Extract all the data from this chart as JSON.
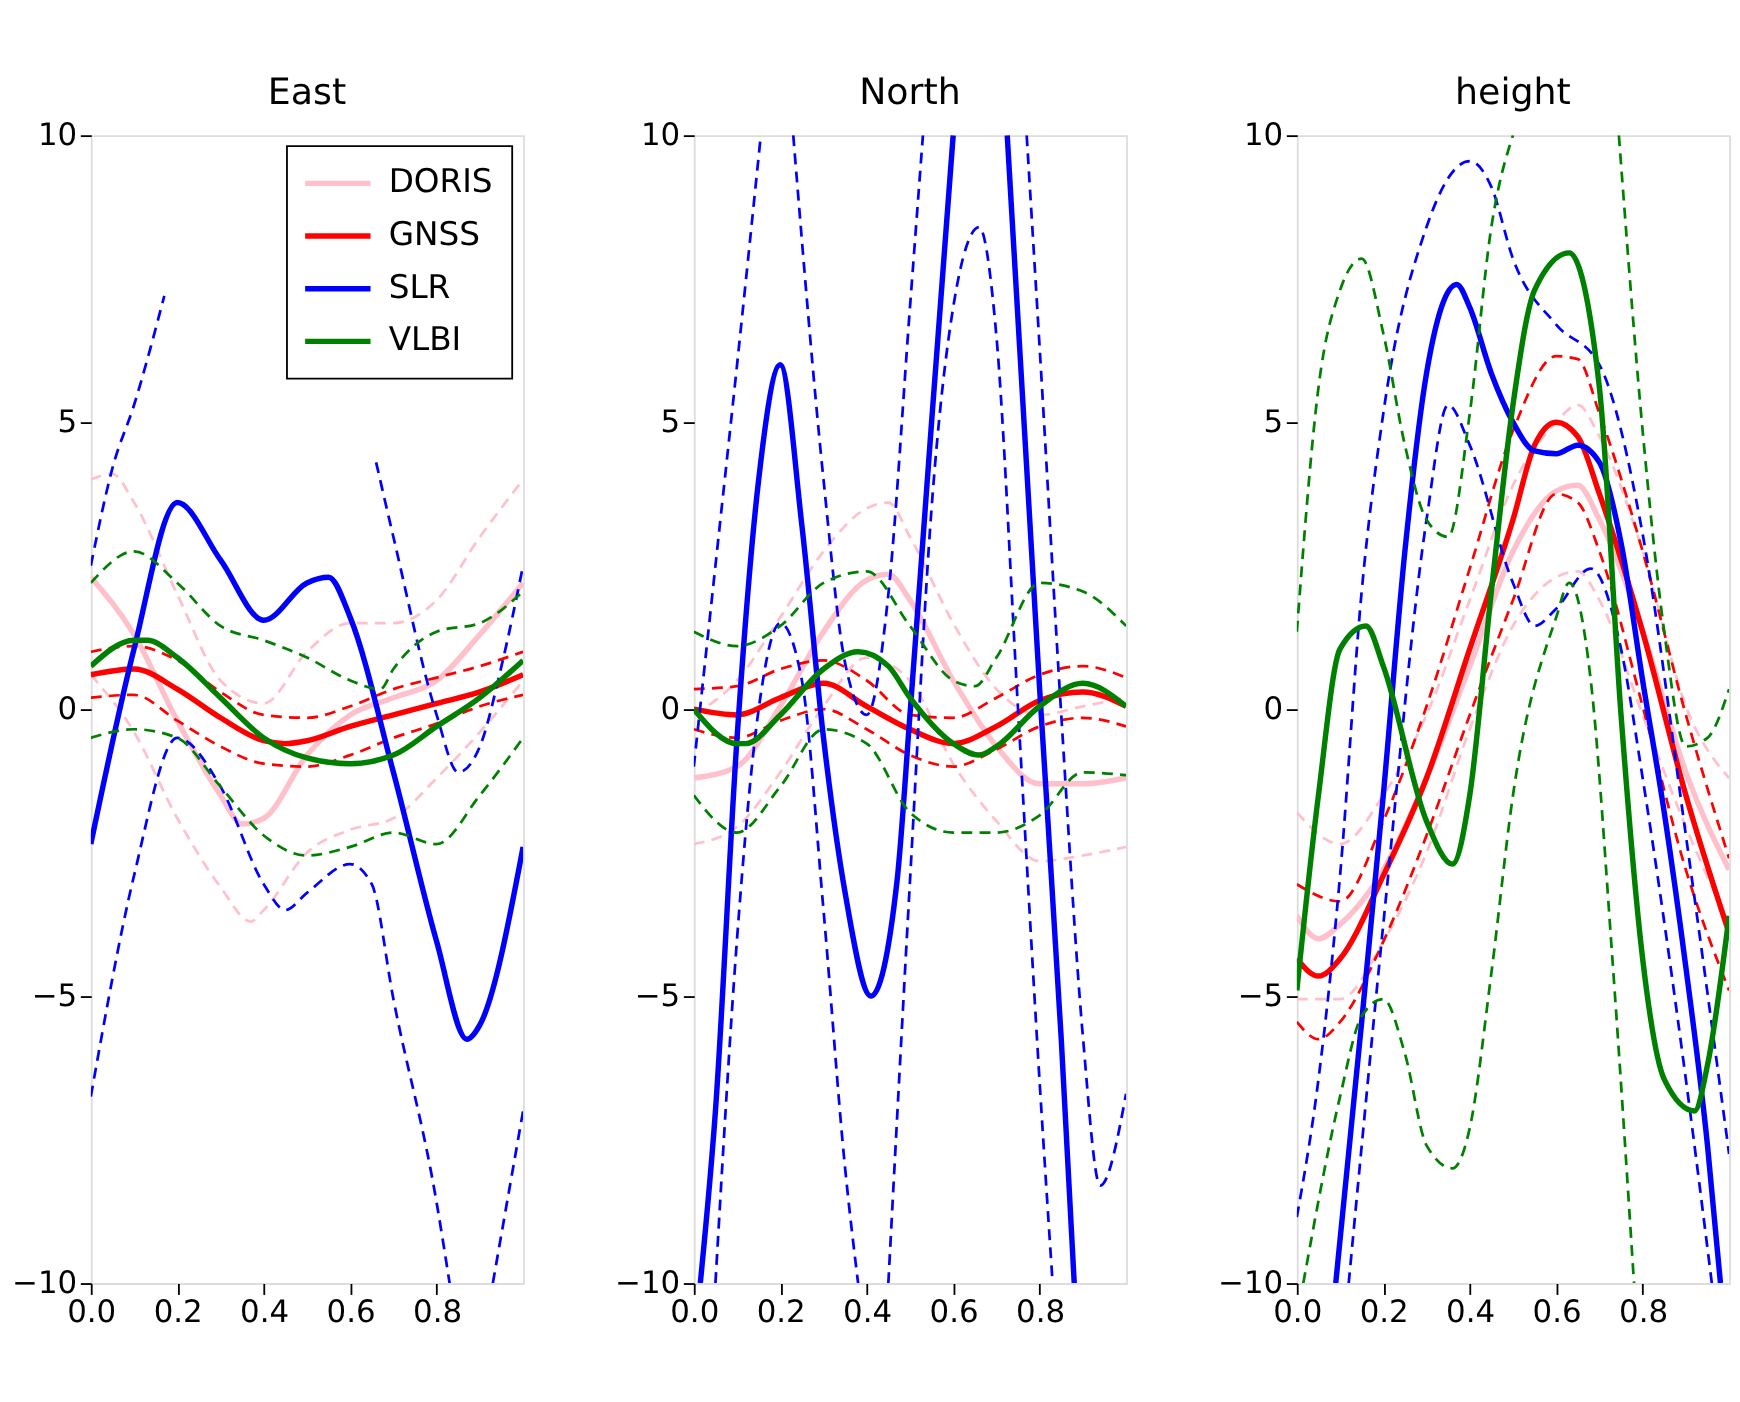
{
  "chart_data": [
    {
      "type": "line",
      "title": "East",
      "xlim": [
        0,
        1
      ],
      "xticks": [
        {
          "value": 0,
          "label": "0.0"
        },
        {
          "value": 0.2,
          "label": "0.2"
        },
        {
          "value": 0.4,
          "label": "0.4"
        },
        {
          "value": 0.6,
          "label": "0.6"
        },
        {
          "value": 0.8,
          "label": "0.8"
        }
      ],
      "ylim": [
        -10,
        10
      ],
      "yticks": [
        -10,
        -5,
        0,
        5,
        10
      ],
      "legend": "top right",
      "grid": false,
      "series": [
        {
          "name": "DORIS",
          "color": "#ffc0cb",
          "line_style": "solid",
          "x": [
            0,
            0.1,
            0.2,
            0.3,
            0.35,
            0.4,
            0.5,
            0.6,
            0.7,
            0.8,
            0.9,
            1
          ],
          "values": [
            2.3,
            1.3,
            -0.2,
            -1.5,
            -2.0,
            -1.9,
            -0.8,
            -0.1,
            0.2,
            0.5,
            1.3,
            2.2
          ]
        },
        {
          "color": "#ffc0cb",
          "line_style": "dashed",
          "x": [
            0,
            0.05,
            0.1,
            0.2,
            0.3,
            0.4,
            0.5,
            0.6,
            0.7,
            0.8,
            0.9,
            1
          ],
          "values": [
            4.0,
            4.1,
            3.6,
            2.0,
            0.5,
            0.1,
            1.0,
            1.5,
            1.5,
            1.9,
            3.0,
            4.0
          ]
        },
        {
          "color": "#ffc0cb",
          "line_style": "dashed",
          "x": [
            0,
            0.1,
            0.2,
            0.3,
            0.37,
            0.4,
            0.5,
            0.6,
            0.7,
            0.8,
            0.9,
            1
          ],
          "values": [
            0.6,
            -0.4,
            -1.9,
            -3.1,
            -3.7,
            -3.5,
            -2.5,
            -2.1,
            -1.9,
            -1.2,
            -0.4,
            0.5
          ]
        },
        {
          "name": "GNSS",
          "color": "#ff0000",
          "line_style": "solid",
          "x": [
            0,
            0.1,
            0.2,
            0.3,
            0.4,
            0.45,
            0.5,
            0.6,
            0.7,
            0.8,
            0.9,
            1
          ],
          "values": [
            0.6,
            0.7,
            0.35,
            -0.15,
            -0.55,
            -0.6,
            -0.55,
            -0.3,
            -0.1,
            0.1,
            0.3,
            0.6
          ]
        },
        {
          "color": "#ff0000",
          "line_style": "dashed",
          "x": [
            0,
            0.1,
            0.2,
            0.3,
            0.4,
            0.5,
            0.6,
            0.7,
            0.8,
            0.9,
            1
          ],
          "values": [
            1.0,
            1.1,
            0.85,
            0.3,
            -0.1,
            -0.15,
            0.05,
            0.35,
            0.55,
            0.75,
            1.0
          ]
        },
        {
          "color": "#ff0000",
          "line_style": "dashed",
          "x": [
            0,
            0.1,
            0.2,
            0.3,
            0.4,
            0.5,
            0.6,
            0.7,
            0.8,
            0.9,
            1
          ],
          "values": [
            0.2,
            0.25,
            -0.2,
            -0.65,
            -0.95,
            -1.0,
            -0.8,
            -0.5,
            -0.25,
            0.05,
            0.25
          ]
        },
        {
          "name": "SLR",
          "color": "#0000ff",
          "line_style": "solid",
          "x": [
            0,
            0.1,
            0.2,
            0.3,
            0.4,
            0.5,
            0.55,
            0.6,
            0.7,
            0.8,
            0.87,
            0.9,
            1
          ],
          "values": [
            -2.35,
            1.05,
            3.6,
            2.6,
            1.55,
            2.2,
            2.3,
            1.6,
            -1.1,
            -4.05,
            -5.75,
            -5.5,
            -2.4
          ]
        },
        {
          "color": "#0000ff",
          "line_style": "dashed",
          "x": [
            0,
            0.05,
            0.1,
            0.17,
            0.4,
            0.66,
            0.7,
            0.8,
            0.85,
            0.9,
            0.95,
            1
          ],
          "values": [
            2.5,
            4.2,
            5.3,
            7.2,
            null,
            4.3,
            3.0,
            -0.1,
            -1.1,
            -0.65,
            0.75,
            2.5
          ]
        },
        {
          "color": "#0000ff",
          "line_style": "dashed",
          "x": [
            0,
            0.1,
            0.2,
            0.3,
            0.4,
            0.45,
            0.5,
            0.6,
            0.65,
            0.7,
            0.8,
            0.83,
            0.88,
            0.93,
            1
          ],
          "values": [
            -6.75,
            -2.9,
            -0.5,
            -1.35,
            -3.05,
            -3.5,
            -3.2,
            -2.7,
            -3.05,
            -5.05,
            -8.6,
            -10,
            null,
            -10,
            -7.0
          ]
        },
        {
          "name": "VLBI",
          "color": "#008000",
          "line_style": "solid",
          "x": [
            0,
            0.1,
            0.13,
            0.2,
            0.3,
            0.4,
            0.5,
            0.6,
            0.7,
            0.8,
            0.9,
            1
          ],
          "values": [
            0.75,
            1.2,
            1.2,
            0.9,
            0.2,
            -0.5,
            -0.85,
            -0.95,
            -0.8,
            -0.3,
            0.2,
            0.85
          ]
        },
        {
          "color": "#008000",
          "line_style": "dashed",
          "x": [
            0,
            0.1,
            0.2,
            0.3,
            0.4,
            0.5,
            0.6,
            0.67,
            0.7,
            0.8,
            0.9,
            1
          ],
          "values": [
            2.2,
            2.75,
            2.2,
            1.45,
            1.2,
            0.9,
            0.5,
            0.35,
            0.7,
            1.35,
            1.5,
            2.05
          ]
        },
        {
          "color": "#008000",
          "line_style": "dashed",
          "x": [
            0,
            0.1,
            0.2,
            0.3,
            0.4,
            0.5,
            0.6,
            0.7,
            0.8,
            0.9,
            1
          ],
          "values": [
            -0.5,
            -0.35,
            -0.5,
            -1.35,
            -2.2,
            -2.55,
            -2.4,
            -2.15,
            -2.35,
            -1.5,
            -0.5
          ]
        }
      ]
    },
    {
      "type": "line",
      "title": "North",
      "xlim": [
        0,
        1
      ],
      "xticks": [
        {
          "value": 0,
          "label": "0.0"
        },
        {
          "value": 0.2,
          "label": "0.2"
        },
        {
          "value": 0.4,
          "label": "0.4"
        },
        {
          "value": 0.6,
          "label": "0.6"
        },
        {
          "value": 0.8,
          "label": "0.8"
        }
      ],
      "ylim": [
        -10,
        10
      ],
      "yticks": [
        -10,
        -5,
        0,
        5,
        10
      ],
      "grid": false,
      "series": [
        {
          "color": "#ffc0cb",
          "line_style": "solid",
          "x": [
            0,
            0.1,
            0.2,
            0.3,
            0.4,
            0.45,
            0.5,
            0.6,
            0.7,
            0.8,
            0.9,
            1
          ],
          "values": [
            -1.2,
            -1.0,
            0.05,
            1.35,
            2.25,
            2.35,
            1.9,
            0.5,
            -0.65,
            -1.3,
            -1.3,
            -1.2
          ]
        },
        {
          "color": "#ffc0cb",
          "line_style": "dashed",
          "x": [
            0,
            0.1,
            0.2,
            0.3,
            0.4,
            0.45,
            0.5,
            0.6,
            0.7,
            0.8,
            0.9,
            1
          ],
          "values": [
            -0.1,
            0.5,
            1.6,
            2.75,
            3.5,
            3.6,
            3.0,
            1.5,
            0.35,
            -0.1,
            0.05,
            0.2
          ]
        },
        {
          "color": "#ffc0cb",
          "line_style": "dashed",
          "x": [
            0,
            0.1,
            0.2,
            0.3,
            0.4,
            0.5,
            0.6,
            0.7,
            0.8,
            0.9,
            1
          ],
          "values": [
            -2.35,
            -2.05,
            -1.1,
            0.05,
            0.9,
            0.5,
            -0.95,
            -1.95,
            -2.65,
            -2.55,
            -2.4
          ]
        },
        {
          "color": "#ff0000",
          "line_style": "solid",
          "x": [
            0,
            0.1,
            0.2,
            0.3,
            0.4,
            0.5,
            0.6,
            0.7,
            0.8,
            0.9,
            1
          ],
          "values": [
            0,
            -0.1,
            0.2,
            0.45,
            0.05,
            -0.35,
            -0.6,
            -0.3,
            0.15,
            0.3,
            0.05
          ]
        },
        {
          "color": "#ff0000",
          "line_style": "dashed",
          "x": [
            0,
            0.1,
            0.2,
            0.3,
            0.4,
            0.5,
            0.6,
            0.7,
            0.8,
            0.9,
            1
          ],
          "values": [
            0.35,
            0.4,
            0.7,
            0.85,
            0.5,
            -0.1,
            -0.15,
            0.2,
            0.6,
            0.75,
            0.55
          ]
        },
        {
          "color": "#ff0000",
          "line_style": "dashed",
          "x": [
            0,
            0.1,
            0.2,
            0.3,
            0.4,
            0.5,
            0.6,
            0.7,
            0.8,
            0.9,
            1
          ],
          "values": [
            -0.35,
            -0.5,
            -0.2,
            0,
            -0.35,
            -0.8,
            -1.0,
            -0.7,
            -0.3,
            -0.15,
            -0.3
          ]
        },
        {
          "color": "#0000ff",
          "line_style": "solid",
          "x": [
            0.015,
            0.05,
            0.1,
            0.15,
            0.2,
            0.25,
            0.3,
            0.35,
            0.41,
            0.47,
            0.5,
            0.55,
            0.6,
            0.65,
            0.725,
            0.8,
            0.85,
            0.88
          ],
          "values": [
            -10,
            -7.0,
            -0.5,
            4.0,
            6.0,
            3.2,
            -0.5,
            -3.2,
            -5.0,
            -3.0,
            -0.1,
            5.0,
            10,
            null,
            10,
            0.35,
            -5.75,
            -10
          ]
        },
        {
          "color": "#0000ff",
          "line_style": "dashed",
          "x": [
            0,
            0.05,
            0.1,
            0.155,
            0.19,
            0.23,
            0.3,
            0.35,
            0.4,
            0.45,
            0.5,
            0.53,
            0.65,
            0.77,
            0.8,
            0.85,
            0.9,
            0.94,
            1
          ],
          "values": [
            -1.0,
            2.5,
            6.0,
            10,
            null,
            10,
            4.0,
            0.8,
            -0.1,
            2.0,
            7.0,
            10,
            null,
            10,
            6.3,
            -0.1,
            -5.7,
            -8.3,
            -6.7
          ]
        },
        {
          "color": "#0000ff",
          "line_style": "dashed",
          "x": [
            0.05,
            0.1,
            0.15,
            0.2,
            0.25,
            0.3,
            0.35,
            0.38,
            0.41,
            0.45,
            0.5,
            0.55,
            0.6,
            0.66,
            0.7,
            0.75,
            0.8,
            0.83
          ],
          "values": [
            -10,
            -4.0,
            0.0,
            1.5,
            0.5,
            -3.5,
            -8.0,
            -10,
            null,
            -10,
            -3.0,
            3.5,
            7.0,
            8.4,
            6.5,
            0,
            -6.5,
            -10
          ]
        },
        {
          "color": "#008000",
          "line_style": "solid",
          "x": [
            0,
            0.1,
            0.12,
            0.2,
            0.3,
            0.38,
            0.45,
            0.5,
            0.6,
            0.66,
            0.7,
            0.8,
            0.9,
            1
          ],
          "values": [
            0,
            -0.6,
            -0.6,
            -0.1,
            0.7,
            1.0,
            0.75,
            0.2,
            -0.6,
            -0.8,
            -0.65,
            0.05,
            0.45,
            0.05
          ]
        },
        {
          "color": "#008000",
          "line_style": "dashed",
          "x": [
            0,
            0.1,
            0.2,
            0.3,
            0.4,
            0.5,
            0.6,
            0.65,
            0.7,
            0.8,
            0.9,
            1
          ],
          "values": [
            1.35,
            1.1,
            1.45,
            2.2,
            2.4,
            1.45,
            0.5,
            0.4,
            0.9,
            2.2,
            2.05,
            1.45
          ]
        },
        {
          "color": "#008000",
          "line_style": "dashed",
          "x": [
            0,
            0.1,
            0.2,
            0.3,
            0.4,
            0.5,
            0.6,
            0.7,
            0.8,
            0.9,
            1
          ],
          "values": [
            -1.5,
            -2.15,
            -1.35,
            -0.35,
            -0.6,
            -1.8,
            -2.15,
            -2.15,
            -1.85,
            -1.1,
            -1.15
          ]
        }
      ]
    },
    {
      "type": "line",
      "title": "height",
      "xlim": [
        0,
        1
      ],
      "xticks": [
        {
          "value": 0,
          "label": "0.0"
        },
        {
          "value": 0.2,
          "label": "0.2"
        },
        {
          "value": 0.4,
          "label": "0.4"
        },
        {
          "value": 0.6,
          "label": "0.6"
        },
        {
          "value": 0.8,
          "label": "0.8"
        }
      ],
      "ylim": [
        -10,
        10
      ],
      "yticks": [
        -10,
        -5,
        0,
        5,
        10
      ],
      "grid": false,
      "series": [
        {
          "color": "#ffc0cb",
          "line_style": "solid",
          "x": [
            0,
            0.05,
            0.1,
            0.2,
            0.3,
            0.4,
            0.5,
            0.6,
            0.65,
            0.7,
            0.8,
            0.9,
            1
          ],
          "values": [
            -3.6,
            -4.0,
            -3.75,
            -2.8,
            -1.2,
            0.75,
            2.75,
            3.8,
            3.9,
            3.3,
            1.35,
            -1.1,
            -2.8
          ]
        },
        {
          "color": "#ffc0cb",
          "line_style": "dashed",
          "x": [
            0,
            0.1,
            0.2,
            0.3,
            0.4,
            0.5,
            0.6,
            0.65,
            0.7,
            0.8,
            0.9,
            1
          ],
          "values": [
            -1.8,
            -2.35,
            -1.5,
            -0.1,
            1.9,
            3.9,
            5.0,
            5.3,
            4.75,
            2.75,
            0.05,
            -1.2
          ]
        },
        {
          "color": "#ffc0cb",
          "line_style": "dashed",
          "x": [
            0,
            0.1,
            0.2,
            0.3,
            0.4,
            0.5,
            0.6,
            0.65,
            0.7,
            0.8,
            0.9,
            1
          ],
          "values": [
            -5.05,
            -5.05,
            -4.05,
            -2.5,
            -0.35,
            1.45,
            2.3,
            2.4,
            1.9,
            -0.1,
            -2.05,
            -3.75
          ]
        },
        {
          "color": "#ff0000",
          "line_style": "solid",
          "x": [
            0,
            0.05,
            0.1,
            0.2,
            0.3,
            0.4,
            0.5,
            0.55,
            0.6,
            0.65,
            0.7,
            0.8,
            0.9,
            1
          ],
          "values": [
            -4.35,
            -4.65,
            -4.35,
            -2.9,
            -1.2,
            1.05,
            3.3,
            4.6,
            5.0,
            4.75,
            3.75,
            1.35,
            -1.5,
            -3.9
          ]
        },
        {
          "color": "#ff0000",
          "line_style": "dashed",
          "x": [
            0,
            0.1,
            0.2,
            0.3,
            0.4,
            0.5,
            0.6,
            0.65,
            0.7,
            0.8,
            0.9,
            1
          ],
          "values": [
            -3.05,
            -3.35,
            -1.95,
            0.05,
            2.45,
            4.85,
            6.15,
            6.1,
            5.15,
            2.75,
            -0.1,
            -2.6
          ]
        },
        {
          "color": "#ff0000",
          "line_style": "dashed",
          "x": [
            0,
            0.05,
            0.1,
            0.2,
            0.3,
            0.4,
            0.5,
            0.6,
            0.65,
            0.7,
            0.8,
            0.9,
            1
          ],
          "values": [
            -5.45,
            -5.75,
            -5.45,
            -4.05,
            -2.2,
            -0.1,
            1.9,
            3.75,
            3.6,
            2.75,
            0.05,
            -2.8,
            -4.9
          ]
        },
        {
          "color": "#0000ff",
          "line_style": "solid",
          "x": [
            0.09,
            0.15,
            0.2,
            0.25,
            0.3,
            0.37,
            0.4,
            0.45,
            0.5,
            0.55,
            0.6,
            0.65,
            0.7,
            0.75,
            0.8,
            0.85,
            0.9,
            0.95,
            0.98
          ],
          "values": [
            -10,
            -5.45,
            -1.5,
            2.75,
            5.85,
            7.4,
            7.0,
            5.85,
            5.0,
            4.5,
            4.45,
            4.6,
            4.3,
            2.9,
            0.5,
            -1.8,
            -4.5,
            -7.6,
            -10
          ]
        },
        {
          "color": "#0000ff",
          "line_style": "dashed",
          "x": [
            0,
            0.05,
            0.1,
            0.15,
            0.2,
            0.3,
            0.4,
            0.45,
            0.5,
            0.6,
            0.7,
            0.8,
            0.9,
            1
          ],
          "values": [
            -8.85,
            -6.45,
            -2.9,
            2.05,
            5.15,
            8.4,
            9.55,
            9.1,
            7.85,
            6.7,
            6.0,
            3.05,
            -2.2,
            -7.75
          ]
        },
        {
          "color": "#0000ff",
          "line_style": "dashed",
          "x": [
            0.12,
            0.2,
            0.3,
            0.35,
            0.4,
            0.5,
            0.55,
            0.6,
            0.68,
            0.75,
            0.8,
            0.9,
            0.96
          ],
          "values": [
            -10,
            -3.75,
            3.3,
            5.3,
            4.6,
            2.2,
            1.45,
            1.75,
            2.45,
            1.05,
            -1.2,
            -6.45,
            -10
          ]
        },
        {
          "color": "#008000",
          "line_style": "solid",
          "x": [
            0,
            0.05,
            0.1,
            0.16,
            0.2,
            0.3,
            0.36,
            0.4,
            0.45,
            0.5,
            0.55,
            0.63,
            0.7,
            0.75,
            0.8,
            0.85,
            0.92,
            0.95,
            1
          ],
          "values": [
            -4.9,
            -1.5,
            1.05,
            1.45,
            0.75,
            -1.95,
            -2.7,
            -1.5,
            2.05,
            5.3,
            7.3,
            7.95,
            5.6,
            -0.1,
            -4.35,
            -6.45,
            -7.0,
            -6.2,
            -3.6
          ]
        },
        {
          "color": "#008000",
          "line_style": "dashed",
          "x": [
            0,
            0.05,
            0.1,
            0.15,
            0.2,
            0.25,
            0.3,
            0.35,
            0.4,
            0.45,
            0.5,
            0.6,
            0.745,
            0.8,
            0.85,
            0.9,
            0.95,
            1
          ],
          "values": [
            1.35,
            5.6,
            7.3,
            7.85,
            6.55,
            4.6,
            3.3,
            3.0,
            5.15,
            8.4,
            10,
            null,
            10,
            4.85,
            1.35,
            -0.65,
            -0.5,
            0.35
          ]
        },
        {
          "color": "#008000",
          "line_style": "dashed",
          "x": [
            0.015,
            0.1,
            0.15,
            0.2,
            0.25,
            0.3,
            0.36,
            0.4,
            0.45,
            0.5,
            0.6,
            0.63,
            0.68,
            0.73,
            0.78
          ],
          "values": [
            -10,
            -6.75,
            -5.35,
            -5.05,
            -6.0,
            -7.6,
            -8.0,
            -7.3,
            -4.6,
            -1.5,
            1.6,
            2.2,
            0.5,
            -4.35,
            -10
          ]
        }
      ]
    }
  ]
}
